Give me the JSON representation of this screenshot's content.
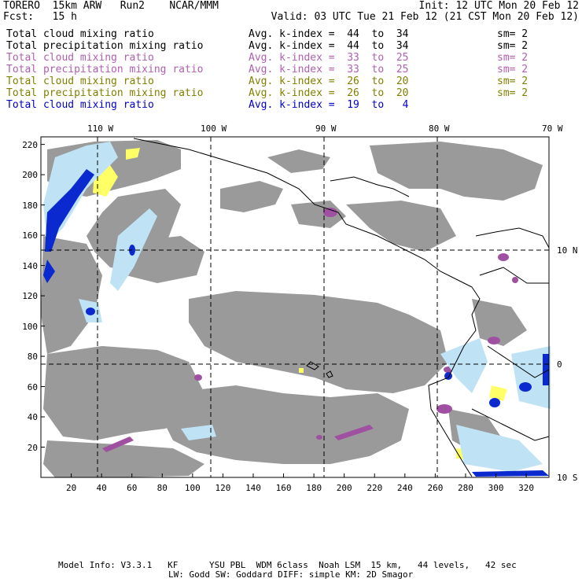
{
  "header": {
    "model": "TORERO  15km ARW   Run2    NCAR/MMM",
    "init": "Init: 12 UTC Mon 20 Feb 12",
    "fcst": "Fcst:   15 h",
    "valid": "Valid: 03 UTC Tue 21 Feb 12 (21 CST Mon 20 Feb 12)"
  },
  "legend": [
    {
      "name": "Total cloud mixing ratio",
      "k": "Avg. k-index =  44  to  34",
      "sm": "sm= 2",
      "color": "#000000"
    },
    {
      "name": "Total precipitation mixing ratio",
      "k": "Avg. k-index =  44  to  34",
      "sm": "sm= 2",
      "color": "#000000"
    },
    {
      "name": "Total cloud mixing ratio",
      "k": "Avg. k-index =  33  to  25",
      "sm": "sm= 2",
      "color": "#b05fb0"
    },
    {
      "name": "Total precipitation mixing ratio",
      "k": "Avg. k-index =  33  to  25",
      "sm": "sm= 2",
      "color": "#b05fb0"
    },
    {
      "name": "Total cloud mixing ratio",
      "k": "Avg. k-index =  26  to  20",
      "sm": "sm= 2",
      "color": "#808000"
    },
    {
      "name": "Total precipitation mixing ratio",
      "k": "Avg. k-index =  26  to  20",
      "sm": "sm= 2",
      "color": "#808000"
    },
    {
      "name": "Total cloud mixing ratio",
      "k": "Avg. k-index =  19  to   4",
      "sm": "",
      "color": "#0000cc"
    }
  ],
  "axes": {
    "top_lon_labels": [
      "110 W",
      "100 W",
      "90 W",
      "80 W",
      "70 W"
    ],
    "right_lat_labels": [
      "10 N",
      "0",
      "10 S"
    ],
    "x_ticks": [
      "20",
      "40",
      "60",
      "80",
      "100",
      "120",
      "140",
      "160",
      "180",
      "200",
      "220",
      "240",
      "260",
      "280",
      "300",
      "320"
    ],
    "y_ticks": [
      "20",
      "40",
      "60",
      "80",
      "100",
      "120",
      "140",
      "160",
      "180",
      "200",
      "220"
    ]
  },
  "footer": {
    "line1": "Model Info: V3.3.1   KF      YSU PBL  WDM 6class  Noah LSM  15 km,   44 levels,   42 sec",
    "line2": "LW: Godd SW: Goddard DIFF: simple KM: 2D Smagor"
  },
  "colors": {
    "cloud_gray": "#9a9a9a",
    "purple": "#a050a0",
    "yellow": "#ffff66",
    "light_blue": "#bfe3f5",
    "blue": "#0a2ad0"
  }
}
